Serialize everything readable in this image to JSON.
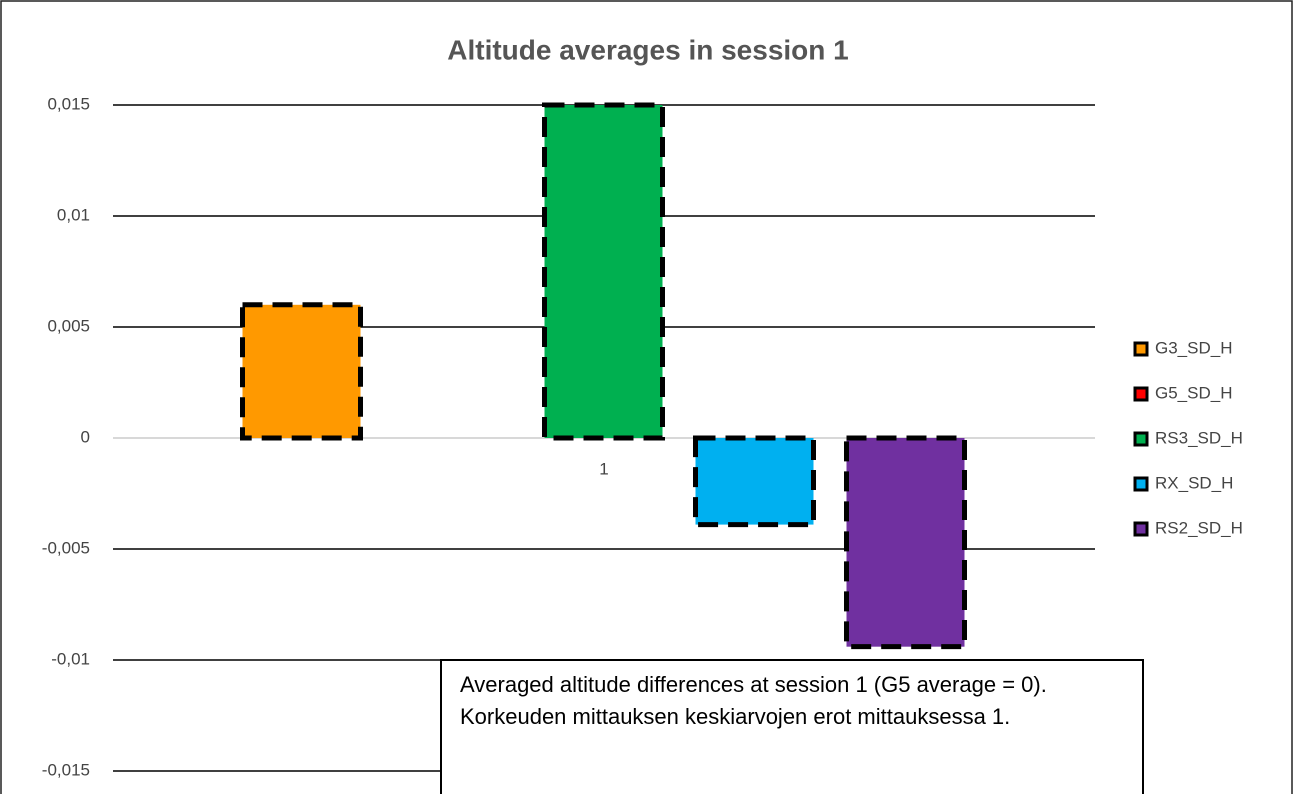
{
  "chart_data": {
    "type": "bar",
    "title": "Altitude averages in session 1",
    "categories": [
      "1"
    ],
    "series": [
      {
        "name": "G3_SD_H",
        "color": "#ff9900",
        "values": [
          0.006
        ]
      },
      {
        "name": "G5_SD_H",
        "color": "#ff0000",
        "values": [
          0
        ]
      },
      {
        "name": "RS3_SD_H",
        "color": "#00b050",
        "values": [
          0.015
        ]
      },
      {
        "name": "RX_SD_H",
        "color": "#00b0f0",
        "values": [
          -0.0039
        ]
      },
      {
        "name": "RS2_SD_H",
        "color": "#7030a0",
        "values": [
          -0.0094
        ]
      }
    ],
    "ylim": [
      -0.015,
      0.015
    ],
    "yticks": [
      {
        "value": -0.015,
        "label": "-0,015"
      },
      {
        "value": -0.01,
        "label": "-0,01"
      },
      {
        "value": -0.005,
        "label": "-0,005"
      },
      0,
      {
        "value": 0.005,
        "label": "0,005"
      },
      {
        "value": 0.01,
        "label": "0,01"
      },
      {
        "value": 0.015,
        "label": "0,015"
      }
    ],
    "grid": true,
    "legend": "right",
    "annotation": "Averaged altitude differences at session 1 (G5 average = 0). Korkeuden mittauksen keskiarvojen erot mittauksessa 1."
  }
}
